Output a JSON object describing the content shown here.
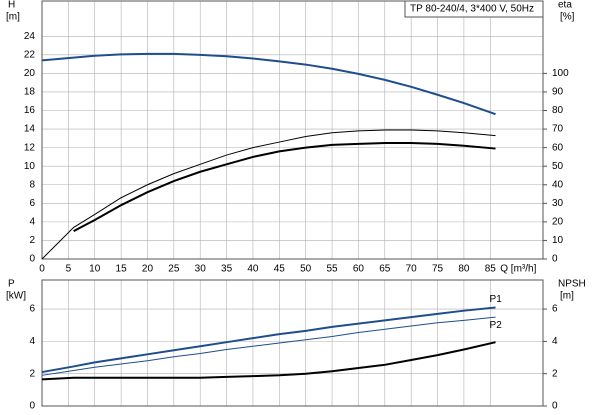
{
  "chart_data": [
    {
      "type": "line",
      "title": "TP 80-240/4, 3*400 V, 50Hz",
      "ylabel": "H",
      "yunit": "[m]",
      "y2label": "eta",
      "y2unit": "[%]",
      "xlabel": "Q [m³/h]",
      "x": [
        0,
        6,
        10,
        15,
        20,
        25,
        30,
        35,
        40,
        45,
        50,
        55,
        60,
        65,
        70,
        75,
        80,
        86
      ],
      "series": [
        {
          "color": "#1f4e8c",
          "width": 2,
          "values": [
            21.4,
            21.7,
            21.9,
            22.05,
            22.1,
            22.1,
            22.0,
            21.85,
            21.6,
            21.3,
            20.95,
            20.5,
            19.95,
            19.3,
            18.55,
            17.7,
            16.8,
            15.6
          ]
        },
        {
          "color": "#000000",
          "width": 1,
          "axis": "y2",
          "values": [
            0,
            17,
            24,
            33,
            40,
            46,
            51,
            56,
            60,
            63,
            66,
            68,
            69,
            69.5,
            69.5,
            69,
            68,
            66.5
          ]
        },
        {
          "color": "#000000",
          "width": 2,
          "axis": "y2",
          "values": [
            null,
            15,
            21,
            29,
            36,
            42,
            47,
            51,
            55,
            58,
            60,
            61.5,
            62,
            62.5,
            62.5,
            62,
            61,
            59.5
          ]
        }
      ],
      "xlim": [
        0,
        95
      ],
      "xticks": [
        0,
        5,
        10,
        15,
        20,
        25,
        30,
        35,
        40,
        45,
        50,
        55,
        60,
        65,
        70,
        75,
        80,
        85
      ],
      "ylim": [
        0,
        27.8
      ],
      "yticks": [
        0,
        2,
        4,
        6,
        8,
        10,
        12,
        14,
        16,
        18,
        20,
        22,
        24
      ],
      "y2lim": [
        0,
        139
      ],
      "y2ticks": [
        0,
        10,
        20,
        30,
        40,
        50,
        60,
        70,
        80,
        90,
        100
      ],
      "grid": true
    },
    {
      "type": "line",
      "ylabel": "P",
      "yunit": "[kW]",
      "y2label": "NPSH",
      "y2unit": "[m]",
      "x": [
        0,
        6,
        10,
        15,
        20,
        25,
        30,
        35,
        40,
        45,
        50,
        55,
        60,
        65,
        70,
        75,
        80,
        86
      ],
      "series": [
        {
          "name": "P1",
          "color": "#1f4e8c",
          "width": 2,
          "values": [
            2.1,
            2.45,
            2.7,
            2.95,
            3.2,
            3.45,
            3.7,
            3.95,
            4.2,
            4.45,
            4.65,
            4.9,
            5.1,
            5.3,
            5.5,
            5.7,
            5.9,
            6.1
          ]
        },
        {
          "name": "P2",
          "color": "#1f4e8c",
          "width": 1,
          "values": [
            1.9,
            2.2,
            2.4,
            2.6,
            2.8,
            3.05,
            3.25,
            3.5,
            3.7,
            3.9,
            4.1,
            4.3,
            4.55,
            4.75,
            4.95,
            5.15,
            5.3,
            5.5
          ]
        },
        {
          "color": "#000000",
          "width": 2,
          "axis": "y2",
          "values": [
            1.65,
            1.75,
            1.75,
            1.75,
            1.75,
            1.75,
            1.75,
            1.8,
            1.85,
            1.9,
            2.0,
            2.15,
            2.35,
            2.55,
            2.85,
            3.15,
            3.5,
            3.95
          ]
        }
      ],
      "xlim": [
        0,
        95
      ],
      "xticks": [
        0,
        5,
        10,
        15,
        20,
        25,
        30,
        35,
        40,
        45,
        50,
        55,
        60,
        65,
        70,
        75,
        80,
        85
      ],
      "ylim": [
        0,
        7.8
      ],
      "yticks": [
        0,
        2,
        4,
        6
      ],
      "y2lim": [
        0,
        7.8
      ],
      "y2ticks": [
        0,
        2,
        4,
        6
      ],
      "grid": true,
      "xtick_labels": false
    }
  ]
}
